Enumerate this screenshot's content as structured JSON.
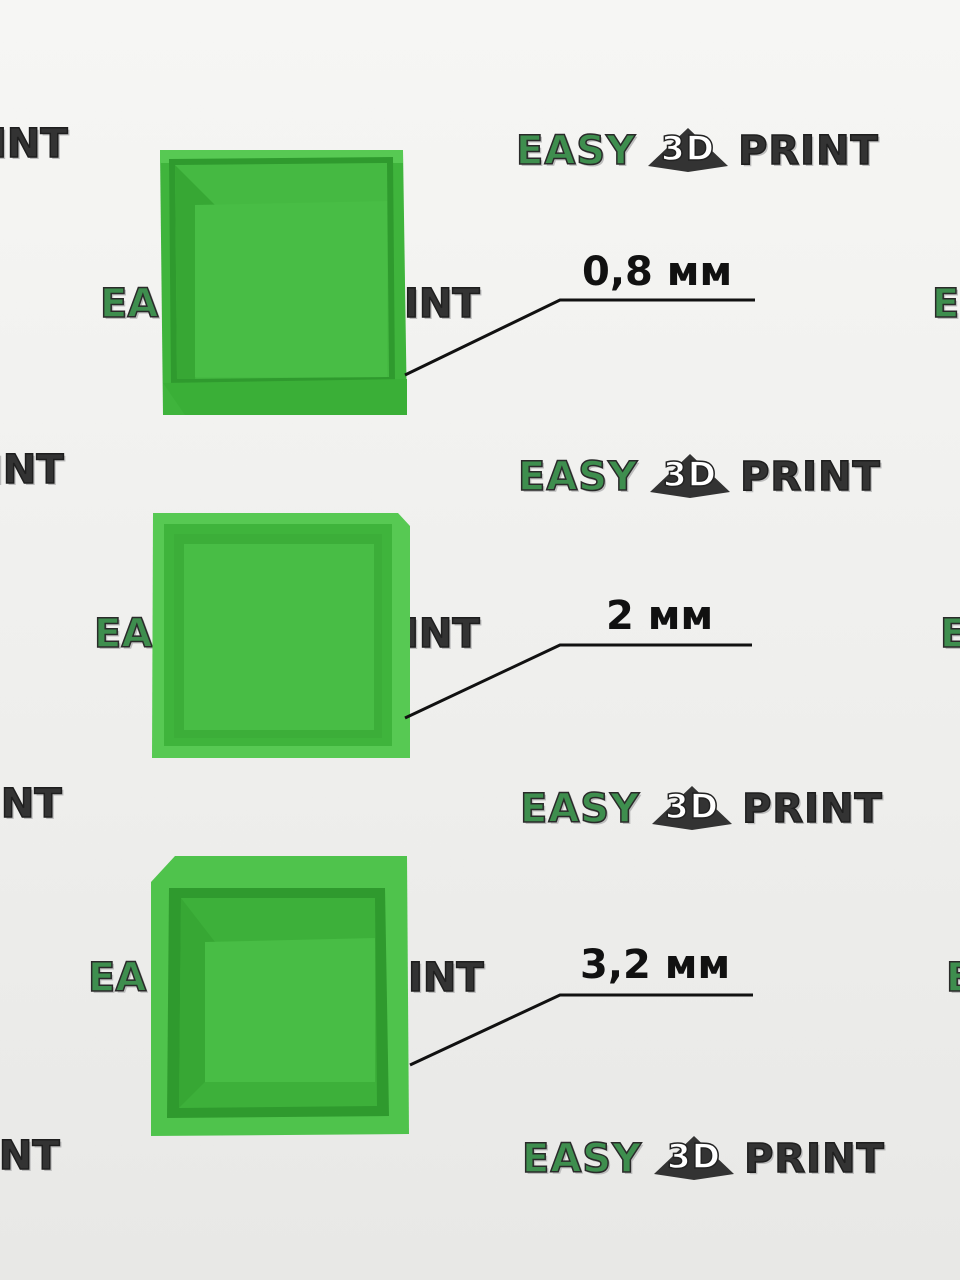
{
  "watermark": {
    "word_left": "EASY",
    "mark_text": "3D",
    "word_right": "PRINT",
    "fragment_right": "INT",
    "fragment_left": "EA",
    "fragment_edge": "E"
  },
  "labels": [
    {
      "text": "0,8 мм"
    },
    {
      "text": "2 мм"
    },
    {
      "text": "3,2 мм"
    }
  ],
  "colors": {
    "box_green": "#3fb43c",
    "box_green_light": "#57c953",
    "box_green_dark": "#2f9a2e",
    "brand_green": "#3e8e4e"
  }
}
